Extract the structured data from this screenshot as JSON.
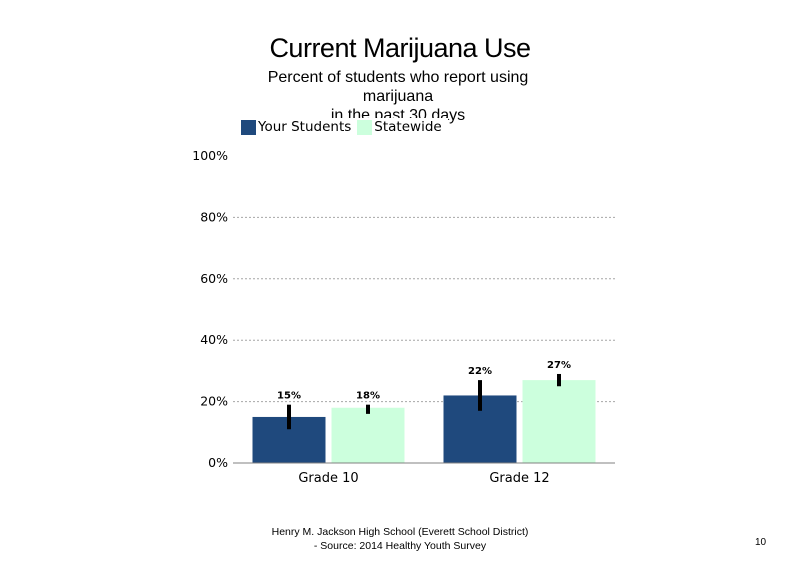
{
  "title": "Current Marijuana Use",
  "subtitle_lines": [
    "Percent of students who report using",
    "marijuana",
    "in the past 30 days"
  ],
  "footer_lines": [
    "Henry M. Jackson High School (Everett School District)",
    "- Source: 2014 Healthy Youth Survey"
  ],
  "page_number": "10",
  "chart_data": {
    "type": "bar",
    "categories": [
      "Grade 10",
      "Grade 12"
    ],
    "series": [
      {
        "name": "Your Students",
        "color": "#1f497d",
        "values": [
          15,
          22
        ],
        "labels": [
          "15%",
          "22%"
        ],
        "error_low": [
          11,
          17
        ],
        "error_high": [
          19,
          27
        ]
      },
      {
        "name": "Statewide",
        "color": "#ccffdd",
        "values": [
          18,
          27
        ],
        "labels": [
          "18%",
          "27%"
        ],
        "error_low": [
          16,
          25
        ],
        "error_high": [
          19,
          29
        ]
      }
    ],
    "yticks": [
      "0%",
      "20%",
      "40%",
      "60%",
      "80%",
      "100%"
    ],
    "ylim": [
      0,
      100
    ],
    "grid": true,
    "legend_position": "top-left"
  }
}
